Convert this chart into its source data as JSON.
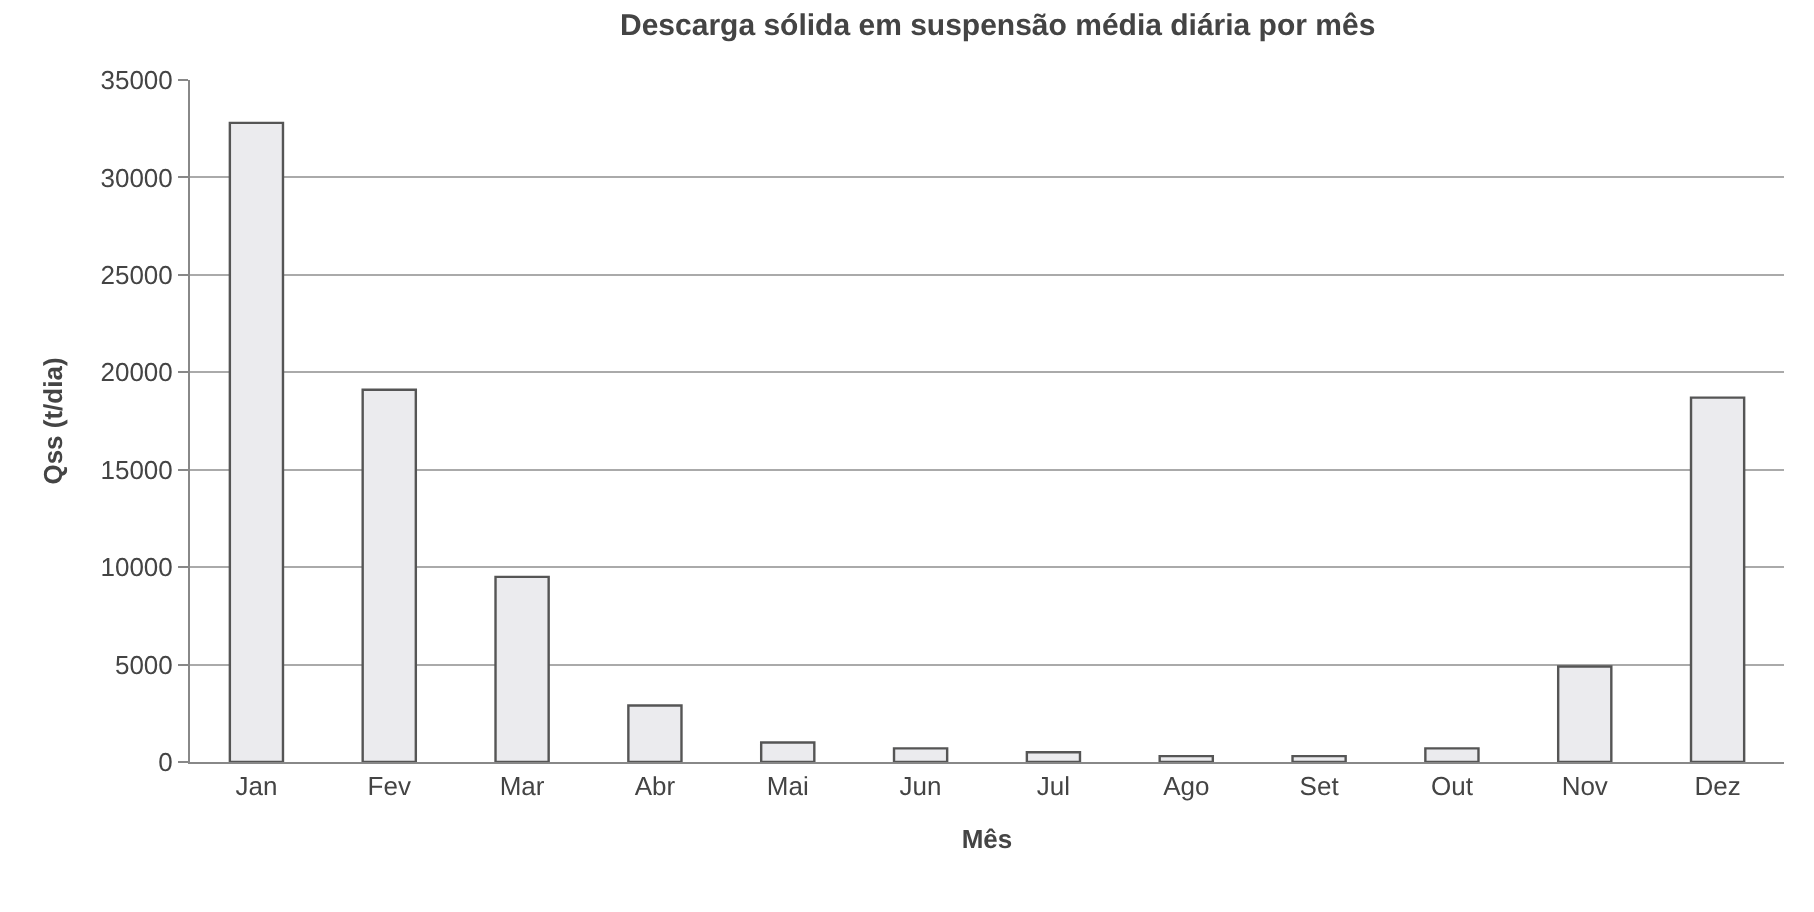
{
  "chart_data": {
    "type": "bar",
    "title": "Descarga sólida em suspensão média diária por mês",
    "xlabel": "Mês",
    "ylabel": "Qss (t/dia)",
    "categories": [
      "Jan",
      "Fev",
      "Mar",
      "Abr",
      "Mai",
      "Jun",
      "Jul",
      "Ago",
      "Set",
      "Out",
      "Nov",
      "Dez"
    ],
    "values": [
      32800,
      19100,
      9500,
      2900,
      1000,
      700,
      500,
      300,
      300,
      700,
      4900,
      18700
    ],
    "color": "#ebebee",
    "ylim": [
      0,
      35000
    ],
    "yticks": [
      0,
      5000,
      10000,
      15000,
      20000,
      25000,
      30000,
      35000
    ],
    "grid": "y"
  }
}
